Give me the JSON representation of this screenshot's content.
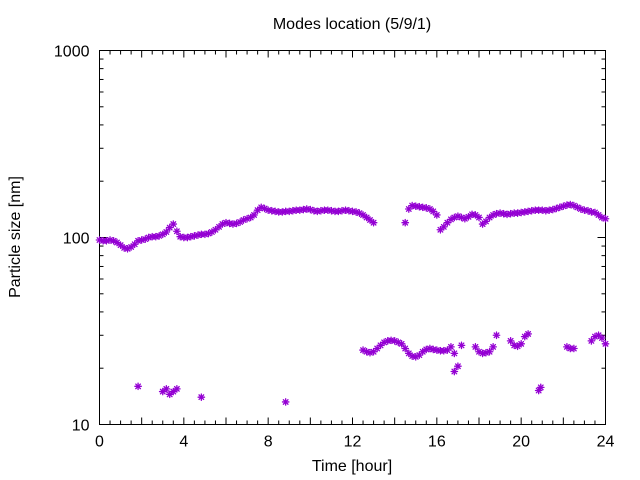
{
  "chart_data": {
    "type": "scatter",
    "title": "Modes location (5/9/1)",
    "xlabel": "Time [hour]",
    "ylabel": "Particle size [nm]",
    "xlim": [
      0,
      24
    ],
    "ylim": [
      10,
      1000
    ],
    "y_scale": "log",
    "grid": false,
    "legend": "none",
    "marker": "star",
    "color": "#9400d3",
    "x_ticks": [
      "0",
      "4",
      "8",
      "12",
      "16",
      "20",
      "24"
    ],
    "x_tick_values": [
      0,
      4,
      8,
      12,
      16,
      20,
      24
    ],
    "y_ticks": [
      "10",
      "100",
      "1000"
    ],
    "y_tick_values": [
      10,
      100,
      1000
    ],
    "series": [
      {
        "points": [
          [
            0.0,
            97
          ],
          [
            0.17,
            96
          ],
          [
            0.33,
            96
          ],
          [
            0.5,
            97
          ],
          [
            0.67,
            96
          ],
          [
            0.83,
            94
          ],
          [
            1.0,
            91
          ],
          [
            1.17,
            88
          ],
          [
            1.33,
            87
          ],
          [
            1.5,
            89
          ],
          [
            1.67,
            92
          ],
          [
            1.83,
            96
          ],
          [
            2.0,
            97
          ],
          [
            2.17,
            98
          ],
          [
            2.33,
            100
          ],
          [
            2.5,
            101
          ],
          [
            2.67,
            101
          ],
          [
            2.83,
            102
          ],
          [
            3.0,
            104
          ],
          [
            3.17,
            107
          ],
          [
            3.33,
            113
          ],
          [
            3.5,
            118
          ],
          [
            3.67,
            108
          ],
          [
            3.83,
            101
          ],
          [
            4.0,
            100
          ],
          [
            4.17,
            100
          ],
          [
            4.33,
            101
          ],
          [
            4.5,
            102
          ],
          [
            4.67,
            103
          ],
          [
            4.83,
            104
          ],
          [
            5.0,
            104
          ],
          [
            5.17,
            105
          ],
          [
            5.33,
            107
          ],
          [
            5.5,
            110
          ],
          [
            5.67,
            114
          ],
          [
            5.83,
            118
          ],
          [
            6.0,
            120
          ],
          [
            6.17,
            119
          ],
          [
            6.33,
            118
          ],
          [
            6.5,
            119
          ],
          [
            6.67,
            121
          ],
          [
            6.83,
            124
          ],
          [
            7.0,
            126
          ],
          [
            7.17,
            128
          ],
          [
            7.33,
            132
          ],
          [
            7.5,
            140
          ],
          [
            7.67,
            145
          ],
          [
            7.83,
            143
          ],
          [
            8.0,
            140
          ],
          [
            8.17,
            139
          ],
          [
            8.33,
            138
          ],
          [
            8.5,
            137
          ],
          [
            8.67,
            137
          ],
          [
            8.83,
            138
          ],
          [
            9.0,
            138
          ],
          [
            9.17,
            139
          ],
          [
            9.33,
            140
          ],
          [
            9.5,
            140
          ],
          [
            9.67,
            141
          ],
          [
            9.83,
            142
          ],
          [
            10.0,
            141
          ],
          [
            10.17,
            139
          ],
          [
            10.33,
            138
          ],
          [
            10.5,
            139
          ],
          [
            10.67,
            140
          ],
          [
            10.83,
            140
          ],
          [
            11.0,
            139
          ],
          [
            11.17,
            138
          ],
          [
            11.33,
            138
          ],
          [
            11.5,
            139
          ],
          [
            11.67,
            140
          ],
          [
            11.83,
            139
          ],
          [
            12.0,
            138
          ],
          [
            12.17,
            137
          ],
          [
            12.33,
            135
          ],
          [
            12.5,
            132
          ],
          [
            12.67,
            128
          ],
          [
            12.83,
            124
          ],
          [
            13.0,
            120
          ],
          [
            14.5,
            120
          ],
          [
            14.67,
            142
          ],
          [
            14.83,
            148
          ],
          [
            15.0,
            147
          ],
          [
            15.17,
            146
          ],
          [
            15.33,
            145
          ],
          [
            15.5,
            144
          ],
          [
            15.67,
            142
          ],
          [
            15.83,
            138
          ],
          [
            16.0,
            132
          ],
          [
            16.17,
            110
          ],
          [
            16.33,
            114
          ],
          [
            16.5,
            120
          ],
          [
            16.67,
            125
          ],
          [
            16.83,
            128
          ],
          [
            17.0,
            130
          ],
          [
            17.17,
            128
          ],
          [
            17.33,
            126
          ],
          [
            17.5,
            129
          ],
          [
            17.67,
            133
          ],
          [
            17.83,
            132
          ],
          [
            18.0,
            128
          ],
          [
            18.17,
            118
          ],
          [
            18.33,
            122
          ],
          [
            18.5,
            128
          ],
          [
            18.67,
            132
          ],
          [
            18.83,
            134
          ],
          [
            19.0,
            135
          ],
          [
            19.17,
            134
          ],
          [
            19.33,
            133
          ],
          [
            19.5,
            134
          ],
          [
            19.67,
            135
          ],
          [
            19.83,
            135
          ],
          [
            20.0,
            136
          ],
          [
            20.17,
            137
          ],
          [
            20.33,
            138
          ],
          [
            20.5,
            139
          ],
          [
            20.67,
            140
          ],
          [
            20.83,
            140
          ],
          [
            21.0,
            140
          ],
          [
            21.17,
            139
          ],
          [
            21.33,
            140
          ],
          [
            21.5,
            141
          ],
          [
            21.67,
            143
          ],
          [
            21.83,
            145
          ],
          [
            22.0,
            147
          ],
          [
            22.17,
            149
          ],
          [
            22.33,
            150
          ],
          [
            22.5,
            148
          ],
          [
            22.67,
            145
          ],
          [
            22.83,
            142
          ],
          [
            23.0,
            140
          ],
          [
            23.17,
            139
          ],
          [
            23.33,
            137
          ],
          [
            23.5,
            136
          ],
          [
            23.67,
            132
          ],
          [
            23.83,
            128
          ],
          [
            24.0,
            126
          ],
          [
            1.83,
            16
          ],
          [
            3.0,
            15
          ],
          [
            3.17,
            15.5
          ],
          [
            3.33,
            14.5
          ],
          [
            3.5,
            15
          ],
          [
            3.67,
            15.5
          ],
          [
            4.83,
            14
          ],
          [
            8.83,
            13.2
          ],
          [
            20.83,
            15.2
          ],
          [
            20.93,
            15.8
          ],
          [
            12.5,
            25
          ],
          [
            12.67,
            24.5
          ],
          [
            12.83,
            24.2
          ],
          [
            13.0,
            24.5
          ],
          [
            13.17,
            25.5
          ],
          [
            13.33,
            26.5
          ],
          [
            13.5,
            27.5
          ],
          [
            13.67,
            28
          ],
          [
            13.83,
            28.2
          ],
          [
            14.0,
            28
          ],
          [
            14.17,
            27.5
          ],
          [
            14.33,
            27
          ],
          [
            14.5,
            25.5
          ],
          [
            14.67,
            24
          ],
          [
            14.83,
            23.2
          ],
          [
            15.0,
            23
          ],
          [
            15.17,
            23.5
          ],
          [
            15.33,
            24.5
          ],
          [
            15.5,
            25.2
          ],
          [
            15.67,
            25.5
          ],
          [
            15.83,
            25.2
          ],
          [
            16.0,
            25
          ],
          [
            16.17,
            24.8
          ],
          [
            16.33,
            24.8
          ],
          [
            16.5,
            25
          ],
          [
            16.67,
            26
          ],
          [
            16.83,
            24
          ],
          [
            17.0,
            20.5
          ],
          [
            16.83,
            19.2
          ],
          [
            17.17,
            26.5
          ],
          [
            17.83,
            26
          ],
          [
            18.0,
            24.5
          ],
          [
            18.17,
            24
          ],
          [
            18.33,
            24.2
          ],
          [
            18.5,
            24.5
          ],
          [
            18.67,
            26
          ],
          [
            18.83,
            30
          ],
          [
            19.5,
            28
          ],
          [
            19.67,
            26.5
          ],
          [
            19.83,
            26.2
          ],
          [
            20.0,
            27
          ],
          [
            20.17,
            29.5
          ],
          [
            20.33,
            30.5
          ],
          [
            22.17,
            26
          ],
          [
            22.33,
            25.5
          ],
          [
            22.5,
            25.5
          ],
          [
            23.33,
            28
          ],
          [
            23.5,
            29.5
          ],
          [
            23.67,
            30
          ],
          [
            23.83,
            29
          ],
          [
            24.0,
            27
          ]
        ]
      }
    ]
  }
}
